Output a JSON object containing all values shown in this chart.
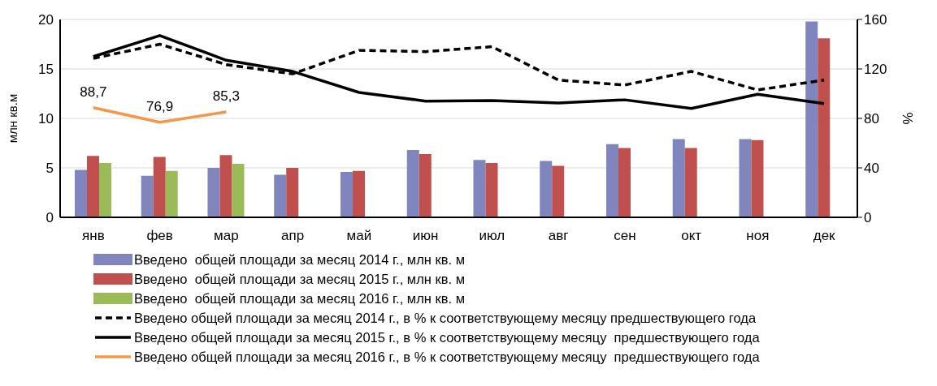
{
  "chart_data": {
    "type": "bar",
    "ylabel": "млн кв.м",
    "y2label": "%",
    "categories": [
      "янв",
      "фев",
      "мар",
      "апр",
      "май",
      "июн",
      "июл",
      "авг",
      "сен",
      "окт",
      "ноя",
      "дек"
    ],
    "series": [
      {
        "name": "Введено  общей площади за месяц 2014 г., млн кв. м",
        "color": "#8085be",
        "values": [
          4.8,
          4.2,
          5.0,
          4.3,
          4.6,
          6.8,
          5.8,
          5.7,
          7.4,
          7.9,
          7.9,
          19.8
        ]
      },
      {
        "name": "Введено  общей площади за месяц 2015 г., млн кв. м",
        "color": "#c0504d",
        "values": [
          6.2,
          6.1,
          6.3,
          5.0,
          4.7,
          6.4,
          5.5,
          5.2,
          7.0,
          7.0,
          7.8,
          18.1
        ]
      },
      {
        "name": "Введено  общей площади за месяц 2016 г., млн кв. м",
        "color": "#9bbb59",
        "values": [
          5.5,
          4.7,
          5.4,
          null,
          null,
          null,
          null,
          null,
          null,
          null,
          null,
          null
        ]
      },
      {
        "name": "Введено общей площади за месяц 2014 г., в % к соответствующему месяцу предшествующего года",
        "type": "line",
        "axis": "y2",
        "line_style": "dashed",
        "color": "#000000",
        "values": [
          128.5,
          140,
          123.5,
          116,
          135,
          134,
          138,
          111,
          107,
          118,
          103,
          111
        ]
      },
      {
        "name": "Введено общей площади за месяц 2015 г., в % к соответствующему месяцу  предшествующего года",
        "type": "line",
        "axis": "y2",
        "line_style": "solid",
        "color": "#000000",
        "values": [
          130,
          147,
          127,
          118,
          101,
          94,
          94.5,
          92.5,
          95,
          88,
          99.5,
          92
        ]
      },
      {
        "name": "Введено общей площади за месяц 2016 г., в % к соответствующему месяцу  предшествующего года",
        "type": "line",
        "axis": "y2",
        "line_style": "solid",
        "color": "#f79646",
        "values": [
          88.7,
          76.9,
          85.3,
          null,
          null,
          null,
          null,
          null,
          null,
          null,
          null,
          null
        ],
        "value_labels": [
          "88,7",
          "76,9",
          "85,3",
          null,
          null,
          null,
          null,
          null,
          null,
          null,
          null,
          null
        ]
      }
    ],
    "ylim": [
      0,
      20
    ],
    "yticks": [
      0,
      5,
      10,
      15,
      20
    ],
    "y2lim": [
      0,
      160
    ],
    "y2ticks": [
      0,
      40,
      80,
      120,
      160
    ],
    "grid": "y",
    "legend": "bottom",
    "marker": "none"
  }
}
